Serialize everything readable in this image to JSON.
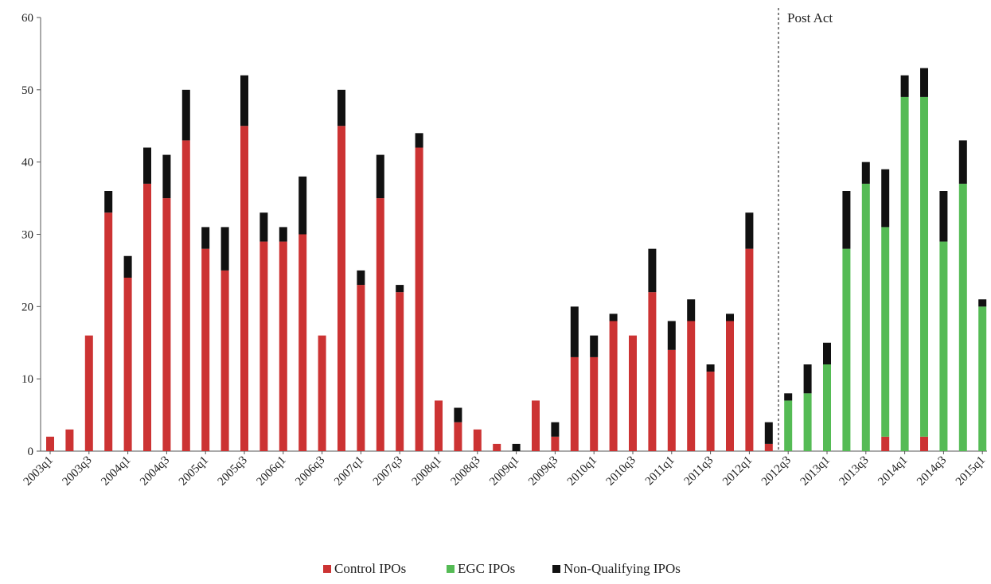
{
  "chart_data": {
    "type": "bar",
    "stacked": true,
    "title": "",
    "xlabel": "",
    "ylabel": "",
    "ylim": [
      0,
      60
    ],
    "yticks": [
      0,
      10,
      20,
      30,
      40,
      50,
      60
    ],
    "grid": false,
    "legend_position": "bottom-center",
    "categories": [
      "2003q1",
      "2003q2",
      "2003q3",
      "2003q4",
      "2004q1",
      "2004q2",
      "2004q3",
      "2004q4",
      "2005q1",
      "2005q2",
      "2005q3",
      "2005q4",
      "2006q1",
      "2006q2",
      "2006q3",
      "2006q4",
      "2007q1",
      "2007q2",
      "2007q3",
      "2007q4",
      "2008q1",
      "2008q2",
      "2008q3",
      "2008q4",
      "2009q1",
      "2009q2",
      "2009q3",
      "2009q4",
      "2010q1",
      "2010q2",
      "2010q3",
      "2010q4",
      "2011q1",
      "2011q2",
      "2011q3",
      "2011q4",
      "2012q1",
      "2012q2",
      "2012q3",
      "2012q4",
      "2013q1",
      "2013q2",
      "2013q3",
      "2013q4",
      "2014q1",
      "2014q2",
      "2014q3",
      "2014q4",
      "2015q1"
    ],
    "tick_labels": [
      "2003q1",
      "2003q3",
      "2004q1",
      "2004q3",
      "2005q1",
      "2005q3",
      "2006q1",
      "2006q3",
      "2007q1",
      "2007q3",
      "2008q1",
      "2008q3",
      "2009q1",
      "2009q3",
      "2010q1",
      "2010q3",
      "2011q1",
      "2011q3",
      "2012q1",
      "2012q3",
      "2013q1",
      "2013q3",
      "2014q1",
      "2014q3",
      "2015q1"
    ],
    "series": [
      {
        "name": "Control IPOs",
        "color": "#cc3333",
        "values": [
          2,
          3,
          16,
          33,
          24,
          37,
          35,
          43,
          28,
          25,
          45,
          29,
          29,
          30,
          16,
          45,
          23,
          35,
          22,
          42,
          7,
          4,
          3,
          1,
          0,
          7,
          2,
          13,
          13,
          18,
          16,
          22,
          14,
          18,
          11,
          18,
          28,
          1,
          0,
          0,
          0,
          0,
          0,
          2,
          0,
          2,
          0,
          0,
          0
        ]
      },
      {
        "name": "EGC IPOs",
        "color": "#55bb55",
        "values": [
          0,
          0,
          0,
          0,
          0,
          0,
          0,
          0,
          0,
          0,
          0,
          0,
          0,
          0,
          0,
          0,
          0,
          0,
          0,
          0,
          0,
          0,
          0,
          0,
          0,
          0,
          0,
          0,
          0,
          0,
          0,
          0,
          0,
          0,
          0,
          0,
          0,
          0,
          7,
          8,
          12,
          28,
          37,
          29,
          49,
          47,
          29,
          37,
          20
        ]
      },
      {
        "name": "Non-Qualifying IPOs",
        "color": "#111111",
        "values": [
          0,
          0,
          0,
          3,
          3,
          5,
          6,
          7,
          3,
          6,
          7,
          4,
          2,
          8,
          0,
          5,
          2,
          6,
          1,
          2,
          0,
          2,
          0,
          0,
          1,
          0,
          2,
          7,
          3,
          1,
          0,
          6,
          4,
          3,
          1,
          1,
          5,
          3,
          1,
          4,
          3,
          8,
          3,
          8,
          3,
          4,
          7,
          6,
          1
        ]
      }
    ],
    "annotations": [
      {
        "text": "Post Act",
        "after_category": "2012q2",
        "style": "dashed-vertical-line"
      }
    ]
  }
}
